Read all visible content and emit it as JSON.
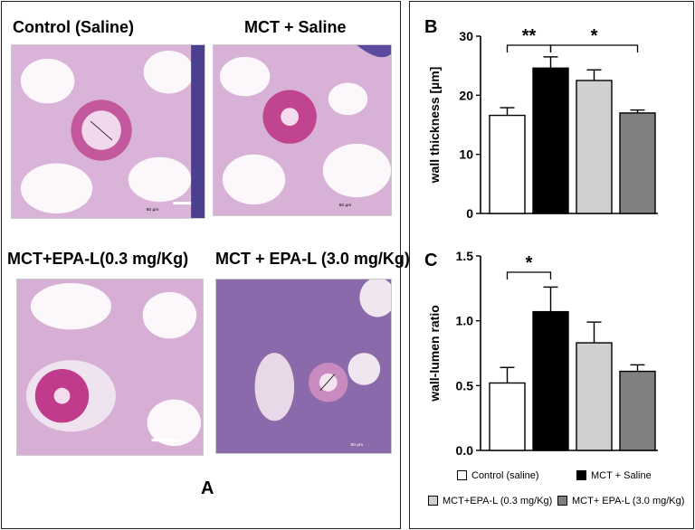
{
  "panel_a": {
    "letter": "A",
    "images": [
      {
        "title": "Control (Saline)",
        "scale_label": "60 µm"
      },
      {
        "title": "MCT + Saline",
        "scale_label": "60 µm"
      },
      {
        "title": "MCT+EPA-L(0.3 mg/Kg)",
        "scale_label": ""
      },
      {
        "title": "MCT + EPA-L (3.0 mg/Kg)",
        "scale_label": "60 µm"
      }
    ]
  },
  "chart_data": [
    {
      "panel": "B",
      "type": "bar",
      "categories": [
        "Control (saline)",
        "MCT + Saline",
        "MCT+EPA-L (0.3 mg/Kg)",
        "MCT+ EPA-L (3.0 mg/Kg)"
      ],
      "values": [
        16.6,
        24.6,
        22.5,
        17.0
      ],
      "errors": [
        1.3,
        1.9,
        1.8,
        0.5
      ],
      "colors": [
        "#ffffff",
        "#000000",
        "#d0d0d0",
        "#808080"
      ],
      "ylabel": "wall thickness [µm]",
      "ylim": [
        0,
        30
      ],
      "yticks": [
        "0",
        "10",
        "20",
        "30"
      ],
      "significance": [
        {
          "from": 0,
          "to": 1,
          "label": "**"
        },
        {
          "from": 1,
          "to": 3,
          "label": "*"
        }
      ]
    },
    {
      "panel": "C",
      "type": "bar",
      "categories": [
        "Control (saline)",
        "MCT + Saline",
        "MCT+EPA-L (0.3 mg/Kg)",
        "MCT+ EPA-L (3.0 mg/Kg)"
      ],
      "values": [
        0.52,
        1.07,
        0.83,
        0.61
      ],
      "errors": [
        0.12,
        0.19,
        0.16,
        0.05
      ],
      "colors": [
        "#ffffff",
        "#000000",
        "#d0d0d0",
        "#808080"
      ],
      "ylabel": "wall-lumen ratio",
      "ylim": [
        0,
        1.5
      ],
      "yticks": [
        "0.0",
        "0.5",
        "1.0",
        "1.5"
      ],
      "significance": [
        {
          "from": 0,
          "to": 1,
          "label": "*"
        }
      ]
    }
  ],
  "legend": [
    {
      "label": "Control (saline)",
      "color": "#ffffff"
    },
    {
      "label": "MCT + Saline",
      "color": "#000000"
    },
    {
      "label": "MCT+EPA-L (0.3 mg/Kg)",
      "color": "#d0d0d0"
    },
    {
      "label": "MCT+ EPA-L (3.0 mg/Kg)",
      "color": "#808080"
    }
  ]
}
